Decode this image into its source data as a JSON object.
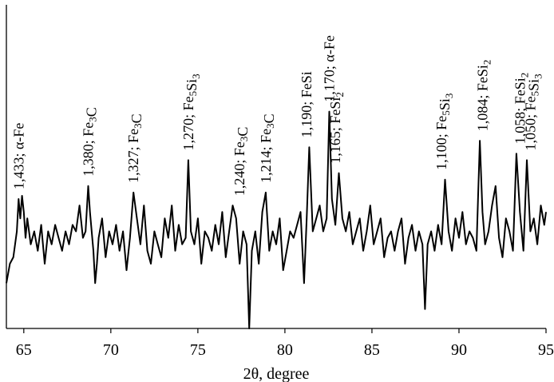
{
  "chart_data": {
    "type": "line",
    "title": "",
    "xlabel": "2θ, degree",
    "ylabel": "",
    "xlim": [
      64,
      95
    ],
    "ylim": [
      0,
      100
    ],
    "x_ticks": [
      65,
      70,
      75,
      80,
      85,
      90,
      95
    ],
    "x_tick_labels": [
      "65",
      "70",
      "75",
      "80",
      "85",
      "90",
      "95"
    ],
    "grid": false,
    "legend": "none",
    "line_color": "#000000",
    "series": [
      {
        "x": [
          64.0,
          64.2,
          64.4,
          64.6,
          64.7,
          64.8,
          64.9,
          65.0,
          65.1,
          65.2,
          65.4,
          65.6,
          65.8,
          66.0,
          66.2,
          66.4,
          66.6,
          66.8,
          67.0,
          67.2,
          67.4,
          67.6,
          67.8,
          68.0,
          68.2,
          68.4,
          68.55,
          68.7,
          68.8,
          69.0,
          69.1,
          69.2,
          69.3,
          69.5,
          69.7,
          69.9,
          70.1,
          70.3,
          70.5,
          70.7,
          70.9,
          71.1,
          71.3,
          71.5,
          71.7,
          71.9,
          72.1,
          72.3,
          72.5,
          72.7,
          72.9,
          73.1,
          73.3,
          73.5,
          73.7,
          73.9,
          74.1,
          74.3,
          74.45,
          74.6,
          74.8,
          75.0,
          75.2,
          75.4,
          75.6,
          75.8,
          76.0,
          76.2,
          76.4,
          76.6,
          76.8,
          77.0,
          77.2,
          77.4,
          77.6,
          77.8,
          77.95,
          78.1,
          78.3,
          78.5,
          78.7,
          78.9,
          79.1,
          79.3,
          79.5,
          79.7,
          79.9,
          80.1,
          80.3,
          80.5,
          80.7,
          80.9,
          81.1,
          81.25,
          81.4,
          81.6,
          81.8,
          82.0,
          82.2,
          82.4,
          82.55,
          82.7,
          82.9,
          83.1,
          83.3,
          83.5,
          83.7,
          83.9,
          84.1,
          84.3,
          84.5,
          84.7,
          84.9,
          85.1,
          85.3,
          85.5,
          85.7,
          85.9,
          86.1,
          86.3,
          86.5,
          86.7,
          86.9,
          87.1,
          87.3,
          87.5,
          87.7,
          87.9,
          88.05,
          88.2,
          88.4,
          88.6,
          88.8,
          89.0,
          89.2,
          89.4,
          89.6,
          89.8,
          90.0,
          90.2,
          90.4,
          90.6,
          90.8,
          91.0,
          91.2,
          91.35,
          91.5,
          91.7,
          91.9,
          92.1,
          92.3,
          92.5,
          92.7,
          92.9,
          93.1,
          93.3,
          93.5,
          93.7,
          93.9,
          94.1,
          94.3,
          94.5,
          94.7,
          94.9,
          95.0
        ],
        "y": [
          14,
          20,
          22,
          30,
          40,
          34,
          41,
          36,
          28,
          34,
          26,
          30,
          24,
          32,
          20,
          30,
          26,
          32,
          28,
          24,
          30,
          26,
          32,
          30,
          38,
          28,
          30,
          44,
          36,
          24,
          14,
          20,
          28,
          34,
          22,
          30,
          26,
          32,
          24,
          30,
          18,
          28,
          42,
          34,
          26,
          38,
          24,
          20,
          30,
          26,
          22,
          34,
          28,
          38,
          24,
          32,
          26,
          28,
          52,
          30,
          26,
          34,
          20,
          30,
          28,
          24,
          32,
          26,
          36,
          22,
          30,
          38,
          34,
          20,
          30,
          26,
          0,
          24,
          30,
          20,
          36,
          42,
          24,
          30,
          26,
          34,
          18,
          24,
          30,
          28,
          32,
          36,
          14,
          34,
          56,
          30,
          34,
          38,
          30,
          34,
          67,
          40,
          32,
          48,
          34,
          30,
          36,
          26,
          30,
          34,
          24,
          30,
          38,
          26,
          30,
          34,
          22,
          28,
          30,
          24,
          30,
          34,
          20,
          28,
          32,
          24,
          30,
          26,
          6,
          26,
          30,
          24,
          32,
          26,
          46,
          30,
          24,
          34,
          28,
          36,
          26,
          30,
          28,
          24,
          58,
          36,
          26,
          30,
          38,
          44,
          28,
          22,
          34,
          30,
          24,
          54,
          36,
          24,
          52,
          30,
          34,
          26,
          38,
          32,
          36
        ]
      }
    ],
    "annotations": [
      {
        "x": 64.7,
        "y": 40,
        "text": [
          {
            "t": "1,433; α-Fe"
          }
        ]
      },
      {
        "x": 68.7,
        "y": 44,
        "text": [
          {
            "t": "1,380; Fe"
          },
          {
            "t": "3",
            "sub": true
          },
          {
            "t": "C"
          }
        ]
      },
      {
        "x": 71.3,
        "y": 42,
        "text": [
          {
            "t": "1,327; Fe"
          },
          {
            "t": "3",
            "sub": true
          },
          {
            "t": "C"
          }
        ]
      },
      {
        "x": 74.45,
        "y": 52,
        "text": [
          {
            "t": "1,270; Fe"
          },
          {
            "t": "5",
            "sub": true
          },
          {
            "t": "Si"
          },
          {
            "t": "3",
            "sub": true
          }
        ]
      },
      {
        "x": 77.4,
        "y": 38,
        "text": [
          {
            "t": "1,240; Fe"
          },
          {
            "t": "3",
            "sub": true
          },
          {
            "t": "C"
          }
        ]
      },
      {
        "x": 78.9,
        "y": 42,
        "text": [
          {
            "t": "1,214; Fe"
          },
          {
            "t": "3",
            "sub": true
          },
          {
            "t": "C"
          }
        ]
      },
      {
        "x": 81.25,
        "y": 56,
        "text": [
          {
            "t": "1,190; FeSi"
          }
        ]
      },
      {
        "x": 82.55,
        "y": 67,
        "text": [
          {
            "t": "1,170; α-Fe"
          }
        ]
      },
      {
        "x": 82.9,
        "y": 48,
        "text": [
          {
            "t": "1,165; FeSi"
          },
          {
            "t": "2",
            "sub": true
          }
        ]
      },
      {
        "x": 89.0,
        "y": 46,
        "text": [
          {
            "t": "1,100; Fe"
          },
          {
            "t": "5",
            "sub": true
          },
          {
            "t": "Si"
          },
          {
            "t": "3",
            "sub": true
          }
        ]
      },
      {
        "x": 91.35,
        "y": 58,
        "text": [
          {
            "t": "1,084; FeSi"
          },
          {
            "t": "2",
            "sub": true
          }
        ]
      },
      {
        "x": 93.5,
        "y": 54,
        "text": [
          {
            "t": "1,058; FeSi"
          },
          {
            "t": "2",
            "sub": true
          }
        ]
      },
      {
        "x": 94.1,
        "y": 52,
        "text": [
          {
            "t": "1,050; Fe"
          },
          {
            "t": "5",
            "sub": true
          },
          {
            "t": "Si"
          },
          {
            "t": "3",
            "sub": true
          }
        ]
      }
    ]
  }
}
